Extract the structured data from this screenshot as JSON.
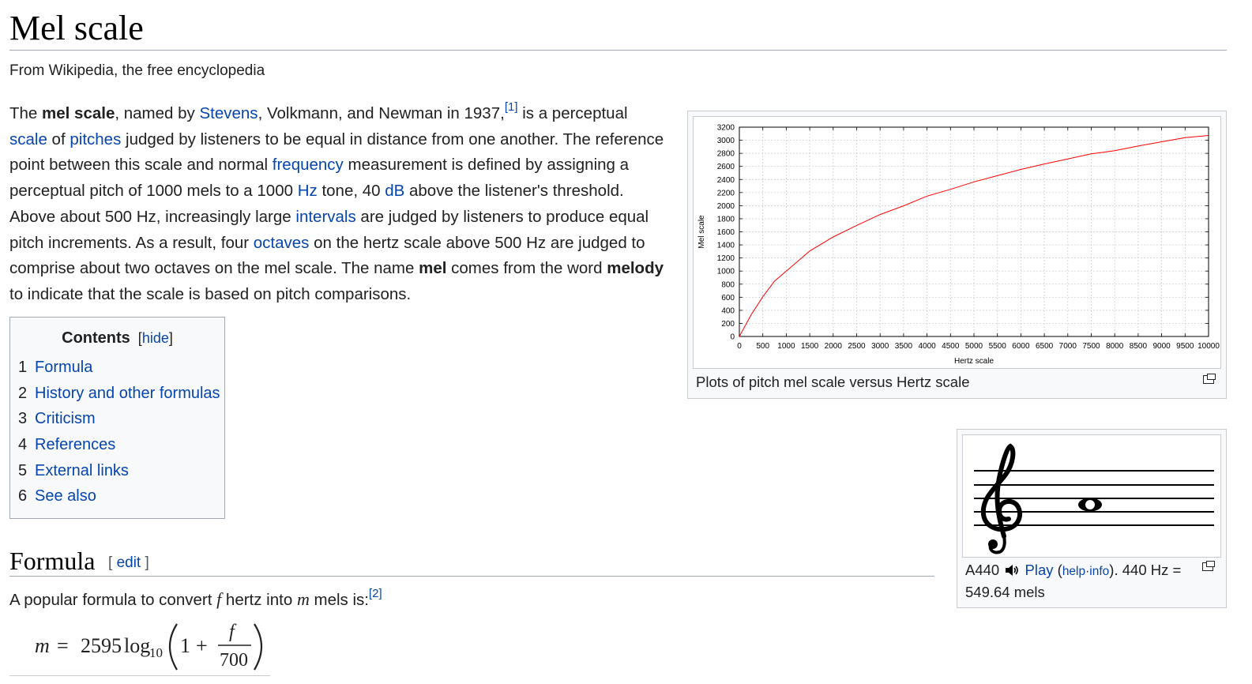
{
  "page": {
    "title": "Mel scale",
    "tagline": "From Wikipedia, the free encyclopedia"
  },
  "intro": {
    "p1": "The ",
    "b_mel_scale": "mel scale",
    "p2": ", named by ",
    "link_stevens": "Stevens",
    "p3": ", Volkmann, and Newman in 1937,",
    "ref1": "[1]",
    "p4": " is a perceptual ",
    "link_scale": "scale",
    "p5": " of ",
    "link_pitches": "pitches",
    "p6": " judged by listeners to be equal in distance from one another. The reference point between this scale and normal ",
    "link_frequency": "frequency",
    "p7": " measurement is defined by assigning a perceptual pitch of 1000 mels to a 1000 ",
    "link_hz": "Hz",
    "p8": " tone, 40 ",
    "link_db": "dB",
    "p9": " above the listener's threshold. Above about 500 Hz, increasingly large ",
    "link_intervals": "intervals",
    "p10": " are judged by listeners to produce equal pitch increments. As a result, four ",
    "link_octaves": "octaves",
    "p11": " on the hertz scale above 500 Hz are judged to comprise about two octaves on the mel scale. The name ",
    "b_mel": "mel",
    "p12": " comes from the word ",
    "b_melody": "melody",
    "p13": " to indicate that the scale is based on pitch comparisons."
  },
  "toc": {
    "title": "Contents",
    "toggle_open": "[",
    "toggle_label": "hide",
    "toggle_close": "]",
    "items": [
      {
        "num": "1",
        "label": "Formula"
      },
      {
        "num": "2",
        "label": "History and other formulas"
      },
      {
        "num": "3",
        "label": "Criticism"
      },
      {
        "num": "4",
        "label": "References"
      },
      {
        "num": "5",
        "label": "External links"
      },
      {
        "num": "6",
        "label": "See also"
      }
    ]
  },
  "formula": {
    "heading": "Formula",
    "edit_open": "[ ",
    "edit_label": "edit",
    "edit_close": " ]",
    "t1": "A popular formula to convert ",
    "var_f": "f",
    "t2": " hertz into ",
    "var_m": "m",
    "t3": " mels is:",
    "ref2": "[2]",
    "eq": {
      "lhs": "m",
      "equals": "=",
      "coef": "2595",
      "log": "log",
      "base": "10",
      "one": "1",
      "plus": "+",
      "num": "f",
      "den": "700"
    }
  },
  "chart_figure": {
    "caption": "Plots of pitch mel scale versus Hertz scale"
  },
  "chart_data": {
    "type": "line",
    "title": "",
    "xlabel": "Hertz scale",
    "ylabel": "Mel scale",
    "xlim": [
      0,
      10000
    ],
    "ylim": [
      0,
      3200
    ],
    "xticks": [
      0,
      500,
      1000,
      1500,
      2000,
      2500,
      3000,
      3500,
      4000,
      4500,
      5000,
      5500,
      6000,
      6500,
      7000,
      7500,
      8000,
      8500,
      9000,
      9500,
      10000
    ],
    "yticks": [
      0,
      200,
      400,
      600,
      800,
      1000,
      1200,
      1400,
      1600,
      1800,
      2000,
      2200,
      2400,
      2600,
      2800,
      3000,
      3200
    ],
    "grid": true,
    "series": [
      {
        "color": "#ff0000",
        "x": [
          0,
          250,
          500,
          750,
          1000,
          1500,
          2000,
          2500,
          3000,
          3500,
          4000,
          4500,
          5000,
          5500,
          6000,
          6500,
          7000,
          7500,
          8000,
          8500,
          9000,
          9500,
          10000
        ],
        "y": [
          0,
          330,
          607,
          845,
          1000,
          1306,
          1521,
          1698,
          1865,
          1997,
          2146,
          2250,
          2363,
          2459,
          2554,
          2637,
          2715,
          2792,
          2840,
          2911,
          2977,
          3041,
          3073
        ]
      }
    ]
  },
  "audio_figure": {
    "caption_a": "A440 ",
    "play_label": "Play",
    "paren_open": " (",
    "help_label": "help",
    "dot": "·",
    "info_label": "info",
    "caption_b": "). 440 Hz = 549.64 mels"
  },
  "colors": {
    "link": "#0645ad",
    "curve": "#ff0000",
    "grid": "#c8c8c8",
    "thumb_bg": "#f8f9fa",
    "border": "#a2a9b1"
  }
}
